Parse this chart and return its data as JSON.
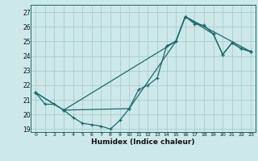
{
  "xlabel": "Humidex (Indice chaleur)",
  "bg_color": "#cde8e8",
  "line_color": "#1a6b6b",
  "grid_color": "#aacccc",
  "xlim": [
    -0.5,
    23.5
  ],
  "ylim": [
    18.8,
    27.5
  ],
  "yticks": [
    19,
    20,
    21,
    22,
    23,
    24,
    25,
    26,
    27
  ],
  "xticks": [
    0,
    1,
    2,
    3,
    4,
    5,
    6,
    7,
    8,
    9,
    10,
    11,
    12,
    13,
    14,
    15,
    16,
    17,
    18,
    19,
    20,
    21,
    22,
    23
  ],
  "s1_x": [
    0,
    1,
    2,
    3,
    4,
    5,
    6,
    7,
    8,
    9,
    10,
    11,
    12,
    13,
    14,
    15,
    16,
    17,
    18,
    19,
    20,
    21,
    22,
    23
  ],
  "s1_y": [
    21.5,
    20.7,
    20.7,
    20.3,
    19.8,
    19.4,
    19.3,
    19.2,
    19.0,
    19.6,
    20.4,
    21.7,
    22.0,
    22.5,
    24.7,
    25.0,
    26.7,
    26.2,
    26.1,
    25.5,
    24.1,
    24.9,
    24.5,
    24.3
  ],
  "s2_x": [
    0,
    3,
    15,
    16,
    23
  ],
  "s2_y": [
    21.5,
    20.3,
    25.0,
    26.7,
    24.3
  ],
  "s3_x": [
    0,
    3,
    10,
    15,
    16,
    19,
    20,
    21,
    22,
    23
  ],
  "s3_y": [
    21.5,
    20.3,
    20.4,
    25.0,
    26.7,
    25.5,
    24.1,
    24.9,
    24.5,
    24.3
  ]
}
